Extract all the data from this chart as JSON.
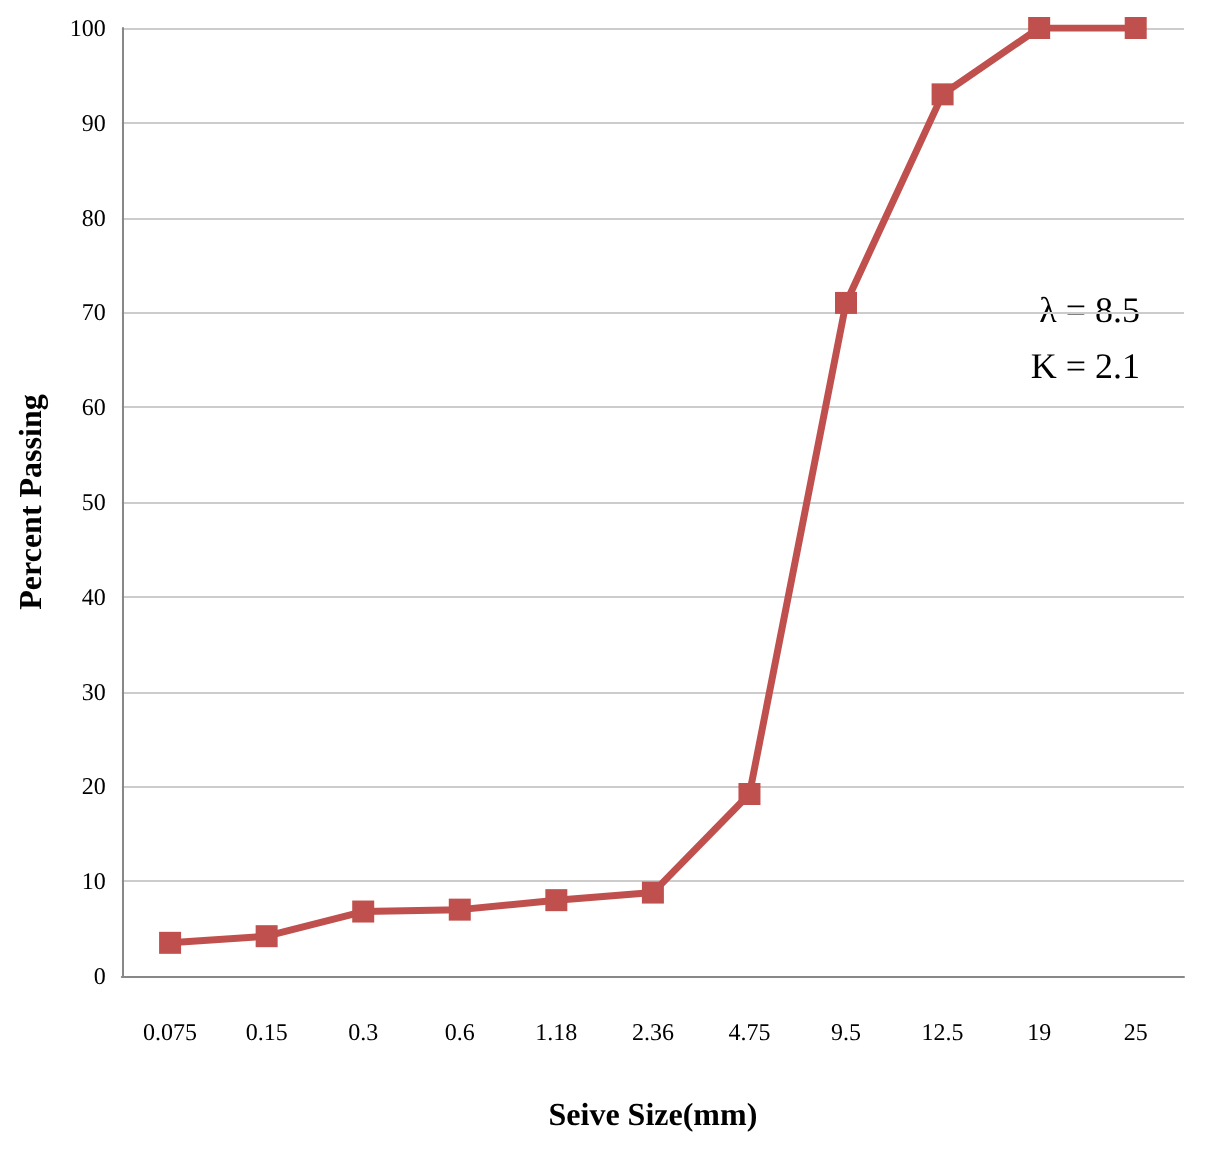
{
  "chart_data": {
    "type": "line",
    "xlabel": "Seive Size(mm)",
    "ylabel": "Percent Passing",
    "categories": [
      "0.075",
      "0.15",
      "0.3",
      "0.6",
      "1.18",
      "2.36",
      "4.75",
      "9.5",
      "12.5",
      "19",
      "25"
    ],
    "series": [
      {
        "color": "#c0504d",
        "values": [
          3.5,
          4.2,
          6.8,
          7,
          8,
          8.8,
          19.2,
          71,
          93,
          100,
          100
        ]
      }
    ],
    "ylim": [
      0,
      100
    ],
    "yticks": [
      0,
      10,
      20,
      30,
      40,
      50,
      60,
      70,
      80,
      90,
      100
    ],
    "grid": "y",
    "marker": "square",
    "line_style": "solid",
    "annotations": [
      "λ = 8.5",
      "K = 2.1"
    ]
  }
}
